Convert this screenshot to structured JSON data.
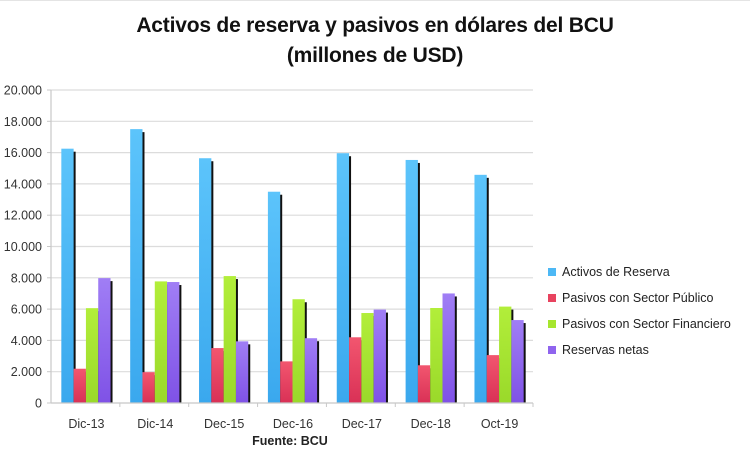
{
  "chart_data": {
    "type": "bar",
    "title": "Activos de reserva y pasivos en dólares del BCU",
    "subtitle": "(millones de USD)",
    "xlabel": "",
    "ylabel": "",
    "source": "Fuente: BCU",
    "categories": [
      "Dic-13",
      "Dic-14",
      "Dec-15",
      "Dec-16",
      "Dec-17",
      "Dec-18",
      "Oct-19"
    ],
    "series": [
      {
        "name": "Activos de Reserva",
        "color": "#4db8f5",
        "values": [
          16250,
          17500,
          15640,
          13500,
          15960,
          15530,
          14580
        ]
      },
      {
        "name": "Pasivos con Sector Público",
        "color": "#e8435f",
        "values": [
          2190,
          1970,
          3510,
          2660,
          4200,
          2410,
          3060
        ]
      },
      {
        "name": "Pasivos con Sector Financiero",
        "color": "#a6e62e",
        "values": [
          6060,
          7770,
          8110,
          6630,
          5750,
          6070,
          6160
        ]
      },
      {
        "name": "Reservas netas",
        "color": "#8f64ee",
        "values": [
          7980,
          7730,
          3940,
          4140,
          5970,
          7000,
          5300
        ]
      }
    ],
    "ylim": [
      0,
      20000
    ],
    "yticks": [
      0,
      2000,
      4000,
      6000,
      8000,
      10000,
      12000,
      14000,
      16000,
      18000,
      20000
    ],
    "ytick_labels": [
      "0",
      "2.000",
      "4.000",
      "6.000",
      "8.000",
      "10.000",
      "12.000",
      "14.000",
      "16.000",
      "18.000",
      "20.000"
    ],
    "grid": true,
    "legend_position": "right"
  },
  "header": {
    "title_line1": "Activos de reserva y pasivos en dólares del BCU",
    "title_line2": "(millones de USD)"
  },
  "legend": {
    "items": [
      {
        "label": "Activos de Reserva",
        "color": "#4db8f5"
      },
      {
        "label": "Pasivos con Sector Público",
        "color": "#e8435f"
      },
      {
        "label": "Pasivos con Sector Financiero",
        "color": "#a6e62e"
      },
      {
        "label": "Reservas netas",
        "color": "#8f64ee"
      }
    ]
  },
  "footer": {
    "source": "Fuente: BCU"
  }
}
